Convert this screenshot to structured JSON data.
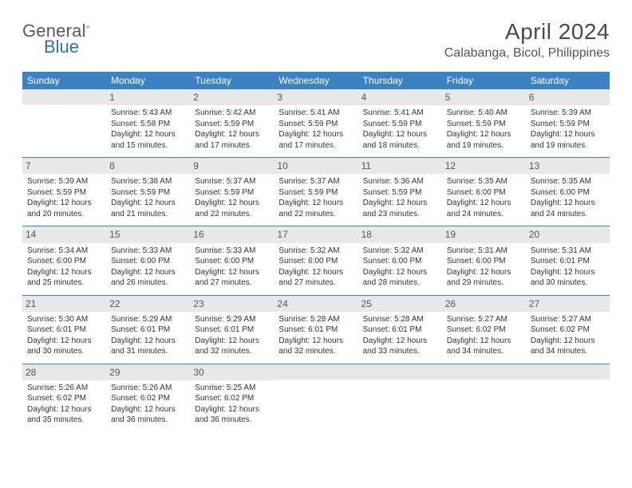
{
  "brand": {
    "part1": "General",
    "part2": "Blue"
  },
  "title": "April 2024",
  "location": "Calabanga, Bicol, Philippines",
  "colors": {
    "header_bg": "#3b82c4",
    "header_text": "#ffffff",
    "date_bg": "#e8e8e8",
    "line_color": "#3b82c4",
    "brand_gray": "#5a5a5a",
    "brand_blue": "#2d6fb5"
  },
  "weekdays": [
    "Sunday",
    "Monday",
    "Tuesday",
    "Wednesday",
    "Thursday",
    "Friday",
    "Saturday"
  ],
  "start_weekday": 1,
  "days": [
    {
      "n": 1,
      "sr": "5:43 AM",
      "ss": "5:58 PM",
      "dl": "12 hours and 15 minutes."
    },
    {
      "n": 2,
      "sr": "5:42 AM",
      "ss": "5:59 PM",
      "dl": "12 hours and 17 minutes."
    },
    {
      "n": 3,
      "sr": "5:41 AM",
      "ss": "5:59 PM",
      "dl": "12 hours and 17 minutes."
    },
    {
      "n": 4,
      "sr": "5:41 AM",
      "ss": "5:59 PM",
      "dl": "12 hours and 18 minutes."
    },
    {
      "n": 5,
      "sr": "5:40 AM",
      "ss": "5:59 PM",
      "dl": "12 hours and 19 minutes."
    },
    {
      "n": 6,
      "sr": "5:39 AM",
      "ss": "5:59 PM",
      "dl": "12 hours and 19 minutes."
    },
    {
      "n": 7,
      "sr": "5:39 AM",
      "ss": "5:59 PM",
      "dl": "12 hours and 20 minutes."
    },
    {
      "n": 8,
      "sr": "5:38 AM",
      "ss": "5:59 PM",
      "dl": "12 hours and 21 minutes."
    },
    {
      "n": 9,
      "sr": "5:37 AM",
      "ss": "5:59 PM",
      "dl": "12 hours and 22 minutes."
    },
    {
      "n": 10,
      "sr": "5:37 AM",
      "ss": "5:59 PM",
      "dl": "12 hours and 22 minutes."
    },
    {
      "n": 11,
      "sr": "5:36 AM",
      "ss": "5:59 PM",
      "dl": "12 hours and 23 minutes."
    },
    {
      "n": 12,
      "sr": "5:35 AM",
      "ss": "6:00 PM",
      "dl": "12 hours and 24 minutes."
    },
    {
      "n": 13,
      "sr": "5:35 AM",
      "ss": "6:00 PM",
      "dl": "12 hours and 24 minutes."
    },
    {
      "n": 14,
      "sr": "5:34 AM",
      "ss": "6:00 PM",
      "dl": "12 hours and 25 minutes."
    },
    {
      "n": 15,
      "sr": "5:33 AM",
      "ss": "6:00 PM",
      "dl": "12 hours and 26 minutes."
    },
    {
      "n": 16,
      "sr": "5:33 AM",
      "ss": "6:00 PM",
      "dl": "12 hours and 27 minutes."
    },
    {
      "n": 17,
      "sr": "5:32 AM",
      "ss": "6:00 PM",
      "dl": "12 hours and 27 minutes."
    },
    {
      "n": 18,
      "sr": "5:32 AM",
      "ss": "6:00 PM",
      "dl": "12 hours and 28 minutes."
    },
    {
      "n": 19,
      "sr": "5:31 AM",
      "ss": "6:00 PM",
      "dl": "12 hours and 29 minutes."
    },
    {
      "n": 20,
      "sr": "5:31 AM",
      "ss": "6:01 PM",
      "dl": "12 hours and 30 minutes."
    },
    {
      "n": 21,
      "sr": "5:30 AM",
      "ss": "6:01 PM",
      "dl": "12 hours and 30 minutes."
    },
    {
      "n": 22,
      "sr": "5:29 AM",
      "ss": "6:01 PM",
      "dl": "12 hours and 31 minutes."
    },
    {
      "n": 23,
      "sr": "5:29 AM",
      "ss": "6:01 PM",
      "dl": "12 hours and 32 minutes."
    },
    {
      "n": 24,
      "sr": "5:28 AM",
      "ss": "6:01 PM",
      "dl": "12 hours and 32 minutes."
    },
    {
      "n": 25,
      "sr": "5:28 AM",
      "ss": "6:01 PM",
      "dl": "12 hours and 33 minutes."
    },
    {
      "n": 26,
      "sr": "5:27 AM",
      "ss": "6:02 PM",
      "dl": "12 hours and 34 minutes."
    },
    {
      "n": 27,
      "sr": "5:27 AM",
      "ss": "6:02 PM",
      "dl": "12 hours and 34 minutes."
    },
    {
      "n": 28,
      "sr": "5:26 AM",
      "ss": "6:02 PM",
      "dl": "12 hours and 35 minutes."
    },
    {
      "n": 29,
      "sr": "5:26 AM",
      "ss": "6:02 PM",
      "dl": "12 hours and 36 minutes."
    },
    {
      "n": 30,
      "sr": "5:25 AM",
      "ss": "6:02 PM",
      "dl": "12 hours and 36 minutes."
    }
  ],
  "labels": {
    "sunrise": "Sunrise:",
    "sunset": "Sunset:",
    "daylight": "Daylight:"
  }
}
